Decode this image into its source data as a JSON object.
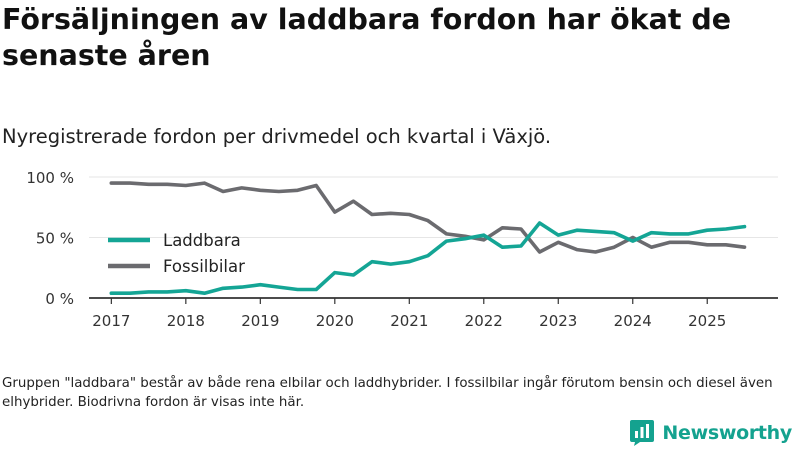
{
  "header": {
    "title": "Försäljningen av laddbara fordon har ökat de senaste åren",
    "subtitle": "Nyregistrerade fordon per drivmedel och kvartal i Växjö."
  },
  "footnote": "Gruppen \"laddbara\" består av både rena elbilar och laddhybrider. I fossilbilar ingår förutom bensin och diesel även elhybrider. Biodrivna fordon är visas inte här.",
  "brand": {
    "name": "Newsworthy"
  },
  "colors": {
    "laddbara": "#14a595",
    "fossil": "#6b6b6f",
    "axis": "#333333",
    "grid": "#e6e6e6"
  },
  "chart_data": {
    "type": "line",
    "title": "Nyregistrerade fordon per drivmedel och kvartal i Växjö.",
    "xlabel": "",
    "ylabel": "",
    "ylim": [
      0,
      100
    ],
    "xlim": [
      2017,
      2025.75
    ],
    "y_ticks": [
      {
        "value": 0,
        "label": "0 %"
      },
      {
        "value": 50,
        "label": "50 %"
      },
      {
        "value": 100,
        "label": "100 %"
      }
    ],
    "x_ticks": [
      {
        "value": 2017,
        "label": "2017"
      },
      {
        "value": 2018,
        "label": "2018"
      },
      {
        "value": 2019,
        "label": "2019"
      },
      {
        "value": 2020,
        "label": "2020"
      },
      {
        "value": 2021,
        "label": "2021"
      },
      {
        "value": 2022,
        "label": "2022"
      },
      {
        "value": 2023,
        "label": "2023"
      },
      {
        "value": 2024,
        "label": "2024"
      },
      {
        "value": 2025,
        "label": "2025"
      }
    ],
    "x": [
      2017,
      2017.25,
      2017.5,
      2017.75,
      2018,
      2018.25,
      2018.5,
      2018.75,
      2019,
      2019.25,
      2019.5,
      2019.75,
      2020,
      2020.25,
      2020.5,
      2020.75,
      2021,
      2021.25,
      2021.5,
      2021.75,
      2022,
      2022.25,
      2022.5,
      2022.75,
      2023,
      2023.25,
      2023.5,
      2023.75,
      2024,
      2024.25,
      2024.5,
      2024.75,
      2025,
      2025.25,
      2025.5
    ],
    "legend_position": "left",
    "series": [
      {
        "name": "Laddbara",
        "color": "#14a595",
        "values": [
          4,
          4,
          5,
          5,
          6,
          4,
          8,
          9,
          11,
          9,
          7,
          7,
          21,
          19,
          30,
          28,
          30,
          35,
          47,
          49,
          52,
          42,
          43,
          62,
          52,
          56,
          55,
          54,
          47,
          54,
          53,
          53,
          56,
          57,
          59
        ]
      },
      {
        "name": "Fossilbilar",
        "color": "#6b6b6f",
        "values": [
          95,
          95,
          94,
          94,
          93,
          95,
          88,
          91,
          89,
          88,
          89,
          93,
          71,
          80,
          69,
          70,
          69,
          64,
          53,
          51,
          48,
          58,
          57,
          38,
          46,
          40,
          38,
          42,
          50,
          42,
          46,
          46,
          44,
          44,
          42
        ]
      }
    ]
  }
}
